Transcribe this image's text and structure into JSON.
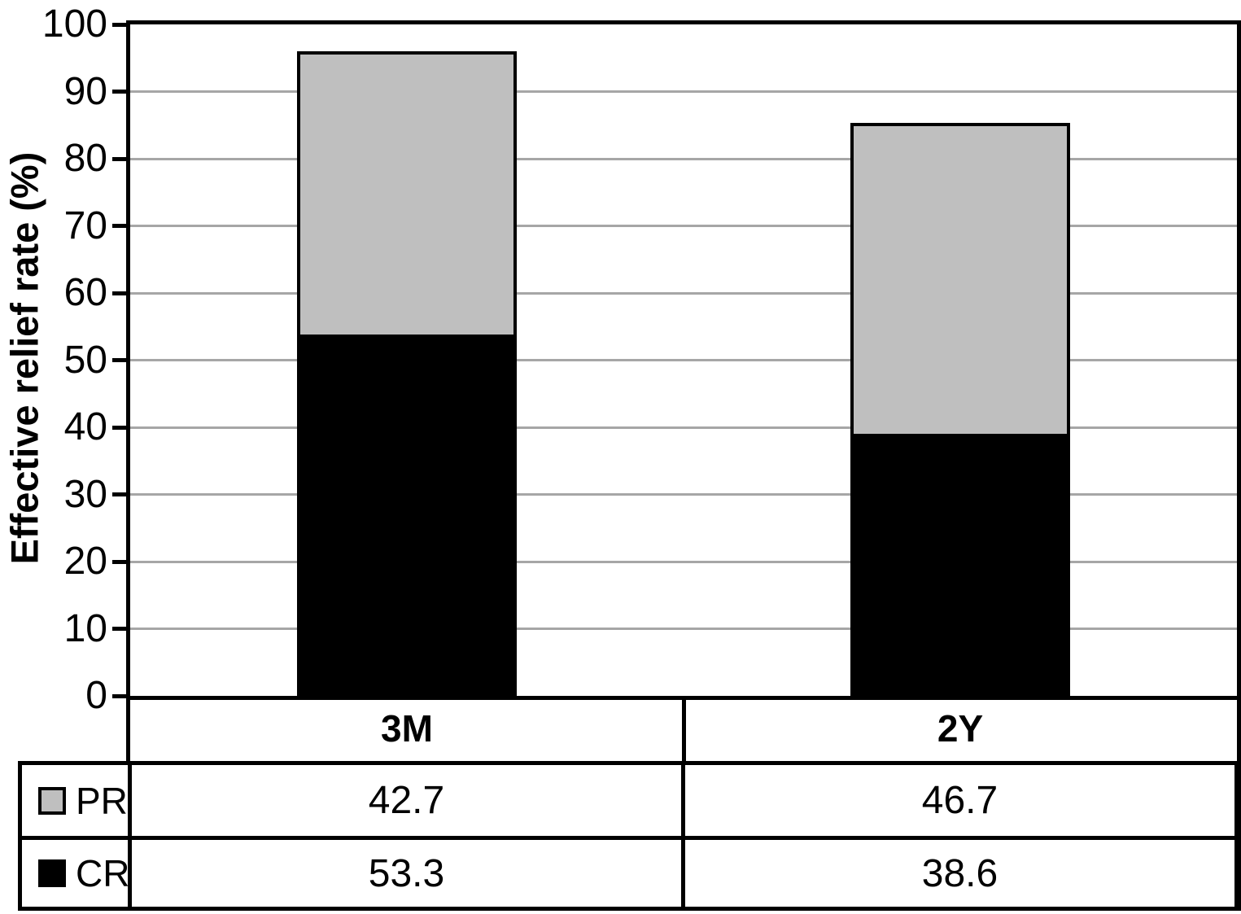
{
  "chart_data": {
    "type": "bar",
    "stacked": true,
    "ylabel": "Effective relief rate (%)",
    "xlabel": "",
    "categories": [
      "3M",
      "2Y"
    ],
    "series": [
      {
        "name": "PR",
        "color": "#bfbfbf",
        "values": [
          42.7,
          46.7
        ]
      },
      {
        "name": "CR",
        "color": "#000000",
        "values": [
          53.3,
          38.6
        ]
      }
    ],
    "ylim": [
      0,
      100
    ],
    "ytick_step": 10,
    "yticks": [
      0,
      10,
      20,
      30,
      40,
      50,
      60,
      70,
      80,
      90,
      100
    ],
    "grid": true,
    "legend_position": "bottom-table"
  },
  "colors": {
    "grid": "#a6a6a6",
    "axis": "#000000",
    "background": "#ffffff",
    "bar_border": "#000000"
  }
}
